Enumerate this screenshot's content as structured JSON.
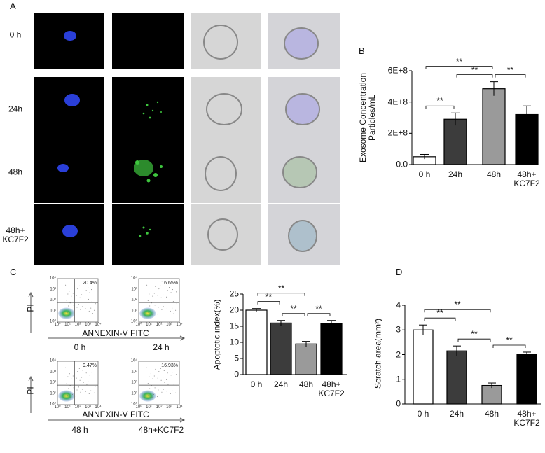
{
  "panels": {
    "a": "A",
    "b": "B",
    "c": "C",
    "d": "D"
  },
  "cell_images": {
    "row_labels": [
      "0 h",
      "24h",
      "48h",
      "48h+\nKC7F2"
    ]
  },
  "flow": {
    "y_label": "PI",
    "x_label": "ANNEXIN-V FITC",
    "ticks": [
      "10⁰",
      "10¹",
      "10²",
      "10³",
      "10⁴"
    ],
    "plots": [
      {
        "label": "0 h",
        "percent": "20.4%"
      },
      {
        "label": "24 h",
        "percent": "16.65%"
      },
      {
        "label": "48 h",
        "percent": "9.47%"
      },
      {
        "label": "48h+KC7F2",
        "percent": "16.93%"
      }
    ]
  },
  "chart_data": [
    {
      "type": "bar",
      "ylabel": "Exosome Concentration\nParticles/mL",
      "categories": [
        "0 h",
        "24h",
        "48h",
        "48h+\nKC7F2"
      ],
      "values": [
        50000000,
        290000000,
        485000000,
        320000000
      ],
      "errors": [
        15000000,
        40000000,
        45000000,
        55000000
      ],
      "colors": [
        "#ffffff",
        "#3c3c3c",
        "#9a9a9a",
        "#000000"
      ],
      "ylim": [
        0,
        600000000
      ],
      "yticks": [
        {
          "value": 0,
          "label": "0.0"
        },
        {
          "value": 200000000,
          "label": "2E+8"
        },
        {
          "value": 400000000,
          "label": "4E+8"
        },
        {
          "value": 600000000,
          "label": "6E+8"
        }
      ],
      "significance": [
        {
          "from": 0,
          "to": 1,
          "label": "**"
        },
        {
          "from": 0,
          "to": 2,
          "label": "**"
        },
        {
          "from": 1,
          "to": 2,
          "label": "**"
        },
        {
          "from": 2,
          "to": 3,
          "label": "**"
        }
      ]
    },
    {
      "type": "bar",
      "ylabel": "Apoptotic index(%)",
      "categories": [
        "0 h",
        "24h",
        "48h",
        "48h+\nKC7F2"
      ],
      "values": [
        20,
        16,
        9.5,
        15.8
      ],
      "errors": [
        0.5,
        0.8,
        0.8,
        1
      ],
      "colors": [
        "#ffffff",
        "#3c3c3c",
        "#9a9a9a",
        "#000000"
      ],
      "ylim": [
        0,
        25
      ],
      "yticks": [
        0,
        5,
        10,
        15,
        20,
        25
      ],
      "significance": [
        {
          "from": 0,
          "to": 1,
          "label": "**"
        },
        {
          "from": 0,
          "to": 2,
          "label": "**"
        },
        {
          "from": 1,
          "to": 2,
          "label": "**"
        },
        {
          "from": 2,
          "to": 3,
          "label": "**"
        }
      ]
    },
    {
      "type": "bar",
      "ylabel": "Scratch area(mm²)",
      "categories": [
        "0 h",
        "24h",
        "48h",
        "48h+\nKC7F2"
      ],
      "values": [
        3.0,
        2.15,
        0.75,
        2.0
      ],
      "errors": [
        0.2,
        0.2,
        0.1,
        0.1
      ],
      "colors": [
        "#ffffff",
        "#3c3c3c",
        "#9a9a9a",
        "#000000"
      ],
      "ylim": [
        0,
        4
      ],
      "yticks": [
        0,
        1,
        2,
        3,
        4
      ],
      "significance": [
        {
          "from": 0,
          "to": 1,
          "label": "**"
        },
        {
          "from": 0,
          "to": 2,
          "label": "**"
        },
        {
          "from": 1,
          "to": 2,
          "label": "**"
        },
        {
          "from": 2,
          "to": 3,
          "label": "**"
        }
      ]
    }
  ]
}
